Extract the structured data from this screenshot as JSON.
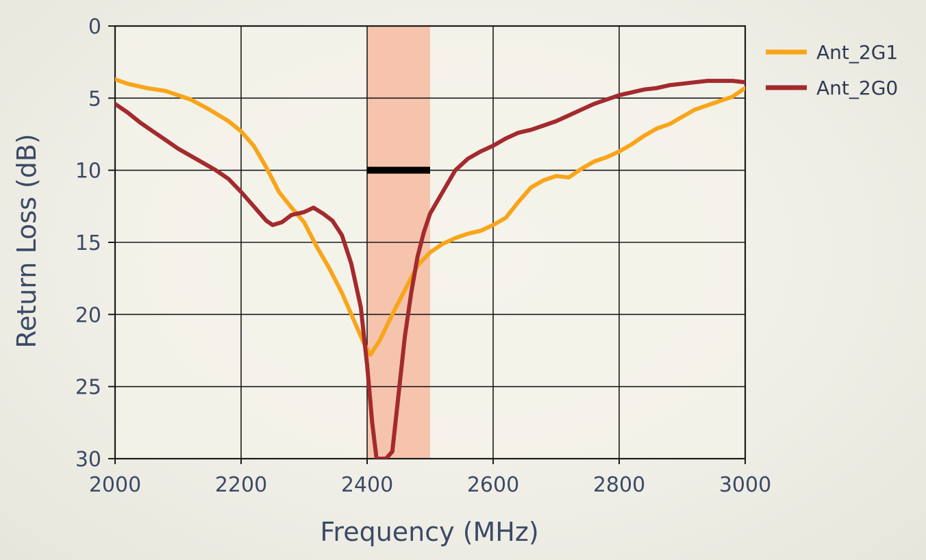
{
  "chart_data": {
    "type": "line",
    "xlabel": "Frequency (MHz)",
    "ylabel": "Return Loss (dB)",
    "xlim": [
      2000,
      3000
    ],
    "ylim": [
      0,
      30
    ],
    "y_inverted": true,
    "grid": true,
    "legend_position": "right-top",
    "x_ticks": [
      2000,
      2200,
      2400,
      2600,
      2800,
      3000
    ],
    "x_tick_labels": [
      "2000",
      "2200",
      "2400",
      "2600",
      "2800",
      "3000"
    ],
    "y_ticks": [
      0,
      5,
      10,
      15,
      20,
      25,
      30
    ],
    "y_tick_labels": [
      "0",
      "5",
      "10",
      "15",
      "20",
      "25",
      "30"
    ],
    "band_highlight": {
      "x_range": [
        2400,
        2500
      ],
      "color": "#f6c4ad"
    },
    "threshold_marker": {
      "x_range": [
        2400,
        2500
      ],
      "y": 10,
      "color": "#000000"
    },
    "series": [
      {
        "name": "Ant_2G1",
        "color": "#f9a51a",
        "x": [
          2000,
          2020,
          2050,
          2080,
          2100,
          2120,
          2150,
          2180,
          2200,
          2220,
          2240,
          2260,
          2280,
          2300,
          2320,
          2340,
          2360,
          2380,
          2395,
          2405,
          2420,
          2440,
          2460,
          2480,
          2500,
          2520,
          2540,
          2560,
          2580,
          2600,
          2620,
          2640,
          2660,
          2680,
          2700,
          2720,
          2740,
          2760,
          2780,
          2800,
          2820,
          2840,
          2860,
          2880,
          2900,
          2920,
          2940,
          2960,
          2980,
          3000
        ],
        "y": [
          3.7,
          4.0,
          4.3,
          4.5,
          4.8,
          5.1,
          5.8,
          6.6,
          7.3,
          8.3,
          9.8,
          11.5,
          12.6,
          13.6,
          15.3,
          16.8,
          18.5,
          20.5,
          22.0,
          22.8,
          21.8,
          20.0,
          18.3,
          16.6,
          15.7,
          15.1,
          14.7,
          14.4,
          14.2,
          13.8,
          13.3,
          12.2,
          11.2,
          10.7,
          10.4,
          10.5,
          9.9,
          9.4,
          9.1,
          8.7,
          8.2,
          7.6,
          7.1,
          6.8,
          6.3,
          5.8,
          5.5,
          5.2,
          4.9,
          4.3
        ]
      },
      {
        "name": "Ant_2G0",
        "color": "#a32a2d",
        "x": [
          2000,
          2020,
          2040,
          2060,
          2080,
          2100,
          2120,
          2140,
          2160,
          2180,
          2200,
          2220,
          2240,
          2250,
          2265,
          2280,
          2300,
          2315,
          2330,
          2345,
          2360,
          2375,
          2390,
          2400,
          2408,
          2415,
          2420,
          2430,
          2440,
          2450,
          2460,
          2470,
          2480,
          2490,
          2500,
          2520,
          2540,
          2560,
          2580,
          2600,
          2620,
          2640,
          2660,
          2680,
          2700,
          2720,
          2740,
          2760,
          2780,
          2800,
          2820,
          2840,
          2860,
          2880,
          2900,
          2920,
          2940,
          2960,
          2980,
          3000
        ],
        "y": [
          5.4,
          6.0,
          6.7,
          7.3,
          7.9,
          8.5,
          9.0,
          9.5,
          10.0,
          10.6,
          11.5,
          12.5,
          13.5,
          13.8,
          13.6,
          13.1,
          12.9,
          12.6,
          13.0,
          13.5,
          14.5,
          16.5,
          19.5,
          23.5,
          27.5,
          30,
          30,
          30,
          29.5,
          25.5,
          21.5,
          18.5,
          16.0,
          14.3,
          13.0,
          11.5,
          10.0,
          9.2,
          8.7,
          8.3,
          7.8,
          7.4,
          7.2,
          6.9,
          6.6,
          6.2,
          5.8,
          5.4,
          5.1,
          4.8,
          4.6,
          4.4,
          4.3,
          4.1,
          4.0,
          3.9,
          3.8,
          3.8,
          3.8,
          3.9
        ]
      }
    ]
  }
}
